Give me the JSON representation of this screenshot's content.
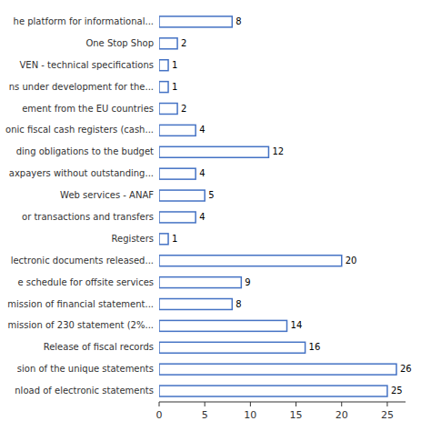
{
  "chart_data": {
    "type": "bar",
    "orientation": "horizontal",
    "categories": [
      "he platform for informational...",
      "One Stop Shop",
      "VEN - technical specifications",
      "ns under development for the...",
      "ement from the EU countries",
      "onic fiscal cash registers (cash...",
      "ding obligations to the budget",
      "axpayers without outstanding...",
      "Web services - ANAF",
      "or transactions and transfers",
      "Registers",
      "lectronic documents released...",
      "e schedule for offsite services",
      "mission of financial statement...",
      "mission of 230 statement (2%...",
      "Release of fiscal records",
      "sion of the unique statements",
      "nload of electronic statements"
    ],
    "values": [
      8,
      2,
      1,
      1,
      2,
      4,
      12,
      4,
      5,
      4,
      1,
      20,
      9,
      8,
      14,
      16,
      26,
      25
    ],
    "color": "#4472C4",
    "xlim": [
      0,
      27
    ],
    "xticks": [
      0,
      5,
      10,
      15,
      20,
      25
    ],
    "data_labels": true,
    "grid": false
  }
}
